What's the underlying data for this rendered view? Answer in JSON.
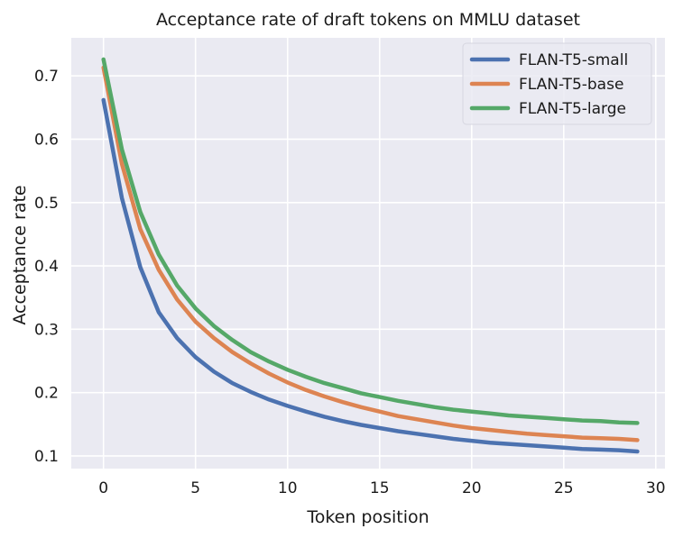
{
  "chart_data": {
    "type": "line",
    "title": "Acceptance rate of draft tokens on MMLU dataset",
    "xlabel": "Token position",
    "ylabel": "Acceptance rate",
    "xlim": [
      -1.75,
      30.5
    ],
    "ylim": [
      0.08,
      0.76
    ],
    "xticks": [
      0,
      5,
      10,
      15,
      20,
      25,
      30
    ],
    "yticks": [
      0.1,
      0.2,
      0.3,
      0.4,
      0.5,
      0.6,
      0.7
    ],
    "xtick_labels": [
      "0",
      "5",
      "10",
      "15",
      "20",
      "25",
      "30"
    ],
    "ytick_labels": [
      "0.1",
      "0.2",
      "0.3",
      "0.4",
      "0.5",
      "0.6",
      "0.7"
    ],
    "grid": true,
    "legend_position": "top-right",
    "x": [
      0,
      1,
      2,
      3,
      4,
      5,
      6,
      7,
      8,
      9,
      10,
      11,
      12,
      13,
      14,
      15,
      16,
      17,
      18,
      19,
      20,
      21,
      22,
      23,
      24,
      25,
      26,
      27,
      28,
      29
    ],
    "series": [
      {
        "name": "FLAN-T5-small",
        "color": "#4c72b0",
        "values": [
          0.662,
          0.507,
          0.398,
          0.327,
          0.286,
          0.256,
          0.233,
          0.215,
          0.201,
          0.189,
          0.179,
          0.17,
          0.162,
          0.155,
          0.149,
          0.144,
          0.139,
          0.135,
          0.131,
          0.127,
          0.124,
          0.121,
          0.119,
          0.117,
          0.115,
          0.113,
          0.111,
          0.11,
          0.109,
          0.107
        ]
      },
      {
        "name": "FLAN-T5-base",
        "color": "#dd8452",
        "values": [
          0.713,
          0.561,
          0.458,
          0.394,
          0.347,
          0.312,
          0.286,
          0.264,
          0.246,
          0.23,
          0.216,
          0.204,
          0.194,
          0.185,
          0.177,
          0.17,
          0.163,
          0.158,
          0.153,
          0.148,
          0.144,
          0.141,
          0.138,
          0.135,
          0.133,
          0.131,
          0.129,
          0.128,
          0.127,
          0.125
        ]
      },
      {
        "name": "FLAN-T5-large",
        "color": "#55a868",
        "values": [
          0.726,
          0.584,
          0.485,
          0.418,
          0.369,
          0.333,
          0.305,
          0.283,
          0.264,
          0.249,
          0.236,
          0.225,
          0.215,
          0.207,
          0.199,
          0.193,
          0.187,
          0.182,
          0.177,
          0.173,
          0.17,
          0.167,
          0.164,
          0.162,
          0.16,
          0.158,
          0.156,
          0.155,
          0.153,
          0.152
        ]
      }
    ]
  }
}
